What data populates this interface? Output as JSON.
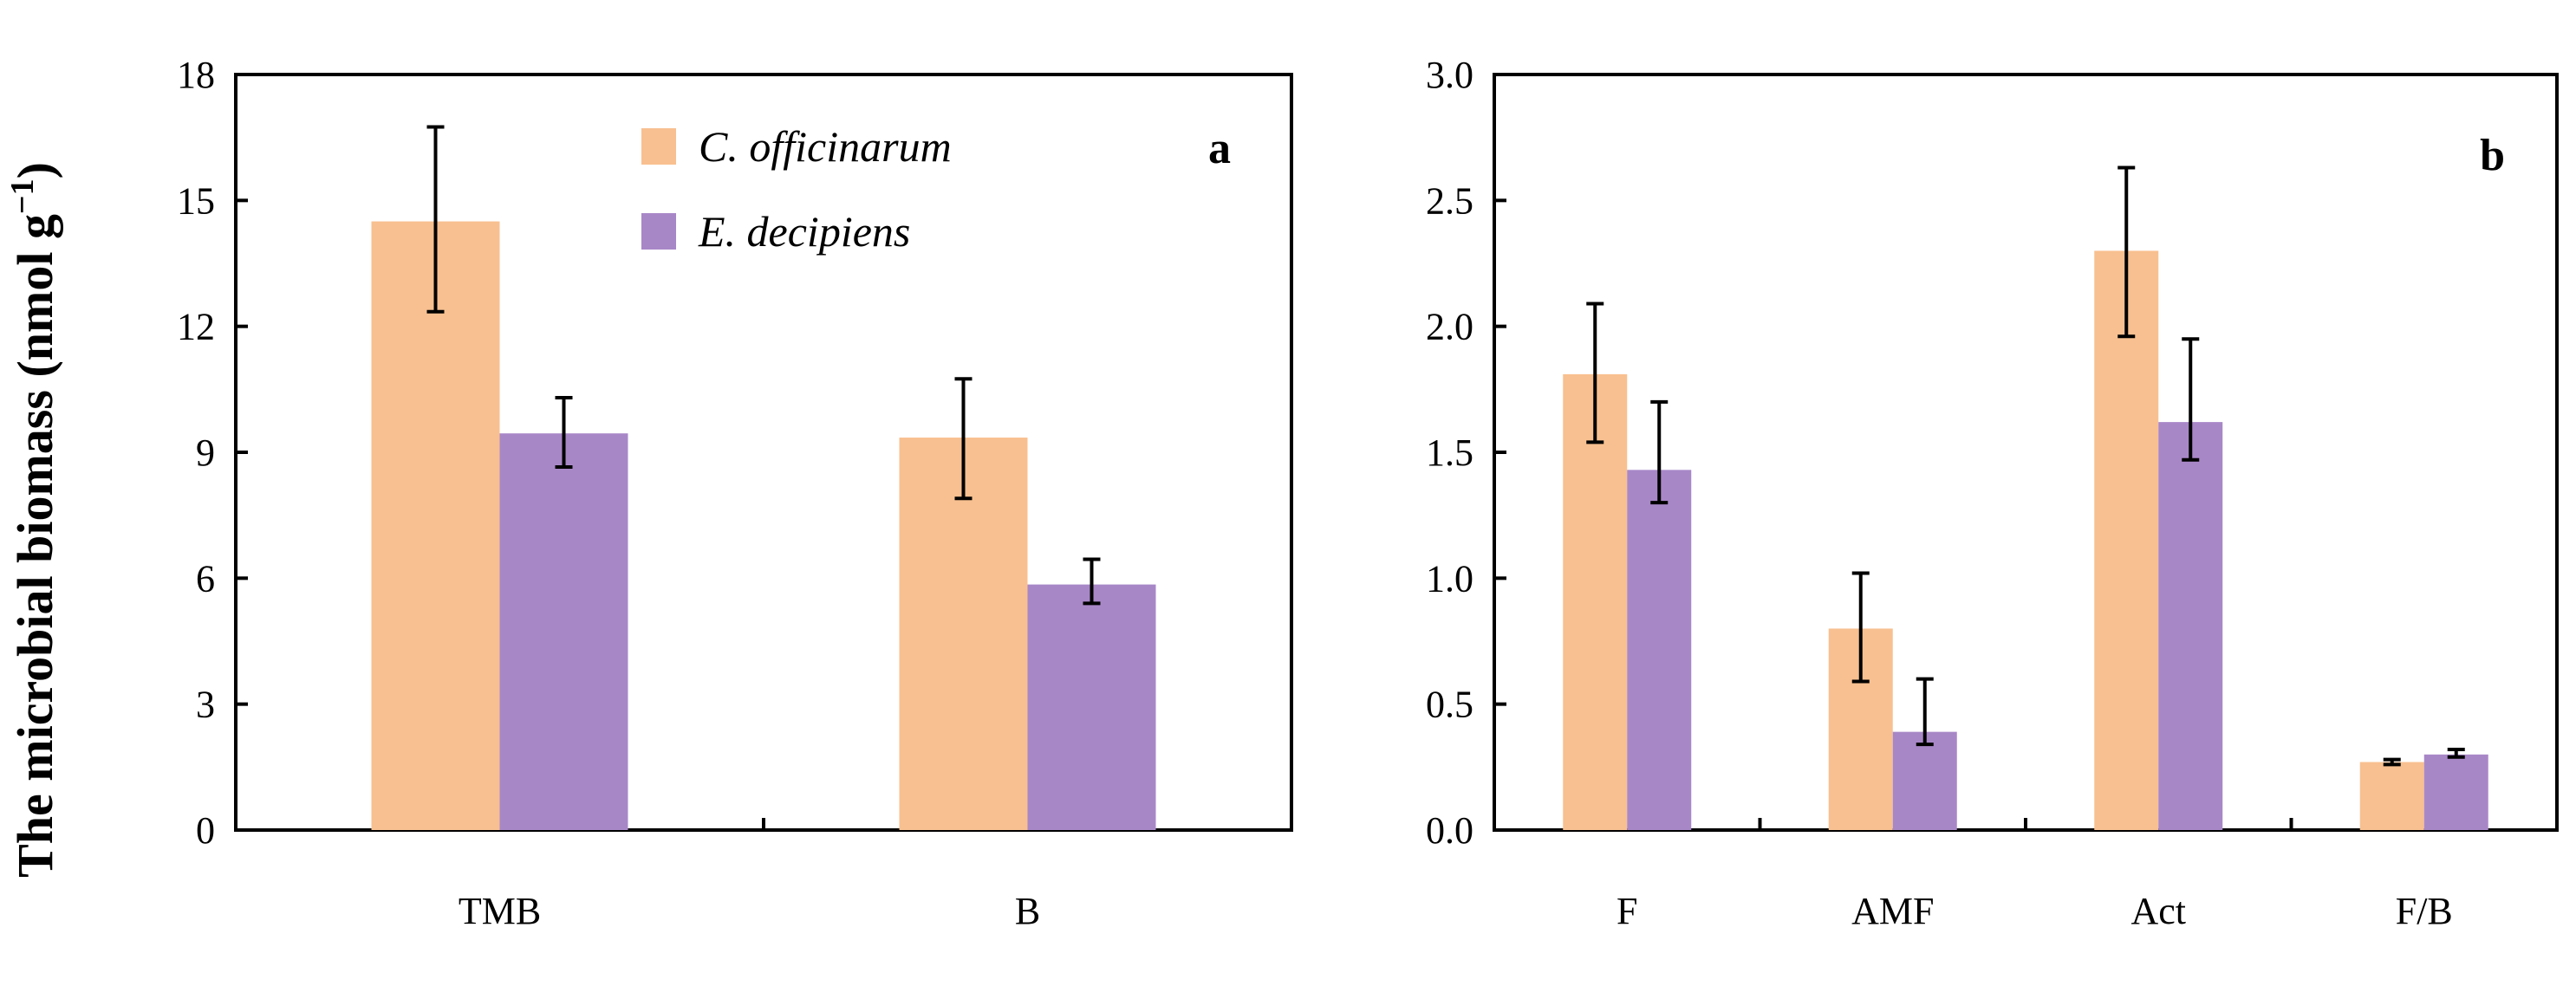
{
  "ylabel": "The microbial biomass (nmol g",
  "ylabel_sup": "−1",
  "ylabel_close": ")",
  "legend": [
    {
      "label": "C. officinarum",
      "color": "#F8C090"
    },
    {
      "label": "E. decipiens",
      "color": "#A887C7"
    }
  ],
  "chart_data": [
    {
      "type": "bar",
      "panel": "a",
      "categories": [
        "TMB",
        "B"
      ],
      "ylim": [
        0,
        18
      ],
      "yticks": [
        "0",
        "3",
        "6",
        "9",
        "12",
        "15",
        "18"
      ],
      "ytick_values": [
        0,
        3,
        6,
        9,
        12,
        15,
        18
      ],
      "series": [
        {
          "name": "C. officinarum",
          "color": "#F8C090",
          "values": [
            14.5,
            9.35
          ],
          "err_low": [
            12.35,
            7.9
          ],
          "err_high": [
            16.75,
            10.75
          ]
        },
        {
          "name": "E. decipiens",
          "color": "#A887C7",
          "values": [
            9.45,
            5.85
          ],
          "err_low": [
            8.65,
            5.4
          ],
          "err_high": [
            10.3,
            6.45
          ]
        }
      ]
    },
    {
      "type": "bar",
      "panel": "b",
      "categories": [
        "F",
        "AMF",
        "Act",
        "F/B"
      ],
      "ylim": [
        0,
        3
      ],
      "yticks": [
        "0.0",
        "0.5",
        "1.0",
        "1.5",
        "2.0",
        "2.5",
        "3.0"
      ],
      "ytick_values": [
        0,
        0.5,
        1.0,
        1.5,
        2.0,
        2.5,
        3.0
      ],
      "series": [
        {
          "name": "C. officinarum",
          "color": "#F8C090",
          "values": [
            1.81,
            0.8,
            2.3,
            0.27
          ],
          "err_low": [
            1.54,
            0.59,
            1.96,
            0.26
          ],
          "err_high": [
            2.09,
            1.02,
            2.63,
            0.28
          ]
        },
        {
          "name": "E. decipiens",
          "color": "#A887C7",
          "values": [
            1.43,
            0.39,
            1.62,
            0.3
          ],
          "err_low": [
            1.3,
            0.34,
            1.47,
            0.29
          ],
          "err_high": [
            1.7,
            0.6,
            1.95,
            0.32
          ]
        }
      ]
    }
  ]
}
